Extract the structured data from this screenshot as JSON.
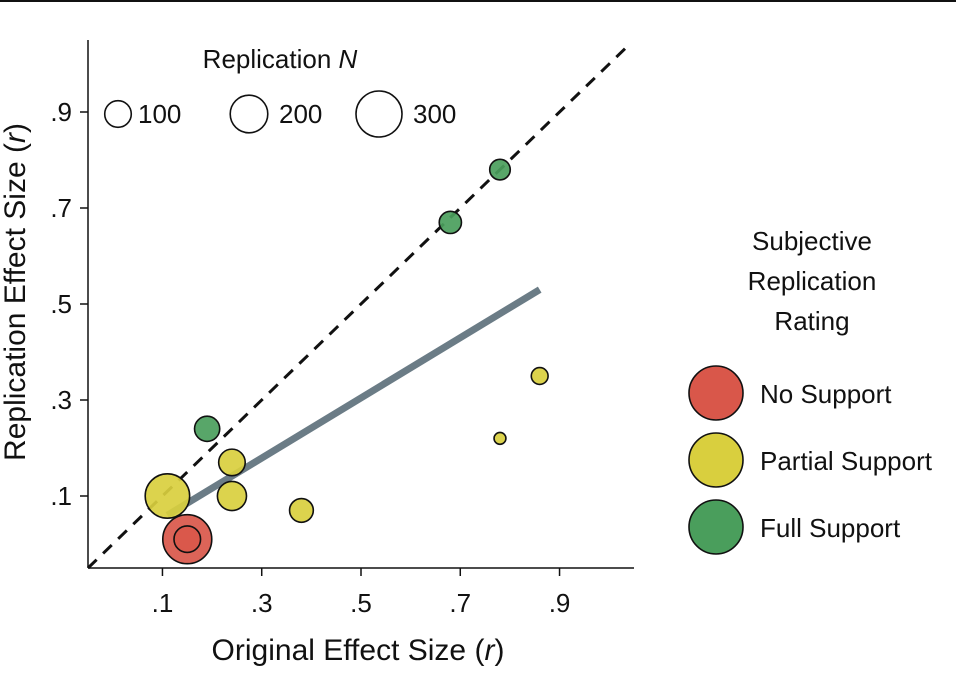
{
  "chart_data": {
    "type": "scatter",
    "xlabel": "Original Effect Size",
    "xlabel_italic": "r",
    "ylabel": "Replication Effect Size",
    "ylabel_italic": "r",
    "xlim": [
      -0.05,
      1.05
    ],
    "ylim": [
      -0.05,
      1.05
    ],
    "x_ticks": [
      {
        "value": 0.1,
        "label": ".1"
      },
      {
        "value": 0.3,
        "label": ".3"
      },
      {
        "value": 0.5,
        "label": ".5"
      },
      {
        "value": 0.7,
        "label": ".7"
      },
      {
        "value": 0.9,
        "label": ".9"
      }
    ],
    "y_ticks": [
      {
        "value": 0.1,
        "label": ".1"
      },
      {
        "value": 0.3,
        "label": ".3"
      },
      {
        "value": 0.5,
        "label": ".5"
      },
      {
        "value": 0.7,
        "label": ".7"
      },
      {
        "value": 0.9,
        "label": ".9"
      }
    ],
    "reference_line": {
      "style": "dashed",
      "from": [
        -0.05,
        -0.05
      ],
      "to": [
        1.04,
        1.04
      ]
    },
    "fit_line": {
      "color": "#6b7c86",
      "from": [
        0.11,
        0.06
      ],
      "to": [
        0.86,
        0.53
      ]
    },
    "size_legend": {
      "title": "Replication",
      "title_italic": "N",
      "entries": [
        {
          "label": "100",
          "n": 100
        },
        {
          "label": "200",
          "n": 200
        },
        {
          "label": "300",
          "n": 300
        }
      ]
    },
    "color_legend": {
      "title_lines": [
        "Subjective",
        "Replication",
        "Rating"
      ],
      "entries": [
        {
          "label": "No Support",
          "color": "#d9574a"
        },
        {
          "label": "Partial Support",
          "color": "#d9cf3e"
        },
        {
          "label": "Full Support",
          "color": "#4a9e5c"
        }
      ]
    },
    "points": [
      {
        "x": 0.78,
        "y": 0.78,
        "n": 60,
        "rating": "Full Support"
      },
      {
        "x": 0.68,
        "y": 0.67,
        "n": 70,
        "rating": "Full Support"
      },
      {
        "x": 0.19,
        "y": 0.24,
        "n": 90,
        "rating": "Full Support"
      },
      {
        "x": 0.86,
        "y": 0.35,
        "n": 40,
        "rating": "Partial Support"
      },
      {
        "x": 0.78,
        "y": 0.22,
        "n": 20,
        "rating": "Partial Support"
      },
      {
        "x": 0.24,
        "y": 0.17,
        "n": 100,
        "rating": "Partial Support"
      },
      {
        "x": 0.24,
        "y": 0.1,
        "n": 120,
        "rating": "Partial Support"
      },
      {
        "x": 0.38,
        "y": 0.07,
        "n": 80,
        "rating": "Partial Support"
      },
      {
        "x": 0.11,
        "y": 0.1,
        "n": 280,
        "rating": "Partial Support"
      },
      {
        "x": 0.15,
        "y": 0.01,
        "n": 340,
        "rating": "No Support"
      },
      {
        "x": 0.15,
        "y": 0.01,
        "n": 100,
        "rating": "No Support"
      }
    ]
  }
}
